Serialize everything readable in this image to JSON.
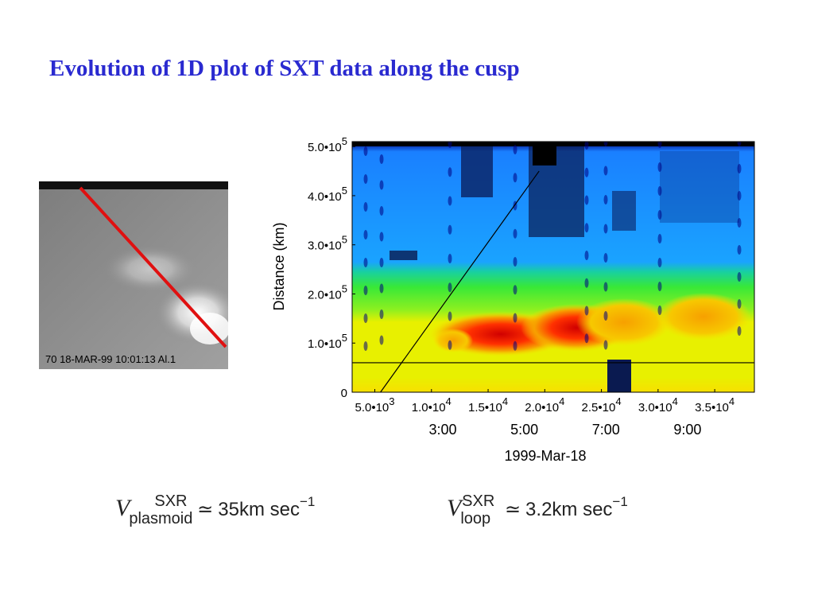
{
  "title": "Evolution of 1D plot of SXT data along the cusp",
  "thumbnail": {
    "caption": "70 18-MAR-99  10:01:13 Al.1",
    "line_color": "#e01010"
  },
  "chart_data": {
    "type": "heatmap",
    "ylabel": "Distance (km)",
    "xlabel": "1999-Mar-18",
    "x_ticks": [
      {
        "label": "5.0•10",
        "exp": "3",
        "value": 5000
      },
      {
        "label": "1.0•10",
        "exp": "4",
        "value": 10000
      },
      {
        "label": "1.5•10",
        "exp": "4",
        "value": 15000
      },
      {
        "label": "2.0•10",
        "exp": "4",
        "value": 20000
      },
      {
        "label": "2.5•10",
        "exp": "4",
        "value": 25000
      },
      {
        "label": "3.0•10",
        "exp": "4",
        "value": 30000
      },
      {
        "label": "3.5•10",
        "exp": "4",
        "value": 35000
      }
    ],
    "x_time_ticks": [
      {
        "label": "3:00",
        "value": 11000
      },
      {
        "label": "5:00",
        "value": 18200
      },
      {
        "label": "7:00",
        "value": 25400
      },
      {
        "label": "9:00",
        "value": 32600
      }
    ],
    "y_ticks": [
      {
        "label": "0",
        "exp": "",
        "value": 0
      },
      {
        "label": "1.0•10",
        "exp": "5",
        "value": 100000
      },
      {
        "label": "2.0•10",
        "exp": "5",
        "value": 200000
      },
      {
        "label": "3.0•10",
        "exp": "5",
        "value": 300000
      },
      {
        "label": "4.0•10",
        "exp": "5",
        "value": 400000
      },
      {
        "label": "5.0•10",
        "exp": "5",
        "value": 500000
      }
    ],
    "xlim": [
      3000,
      38500
    ],
    "ylim": [
      0,
      510000
    ],
    "overlay_lines": [
      {
        "name": "plasmoid",
        "x": [
          5500,
          19500
        ],
        "y": [
          0,
          450000
        ],
        "color": "#000000"
      },
      {
        "name": "loop",
        "x": [
          3000,
          38500
        ],
        "y": [
          60000,
          60000
        ],
        "color": "#000000"
      }
    ],
    "colors": {
      "high": "#e01010",
      "mid_high": "#f7b000",
      "mid": "#e8f000",
      "mid_low": "#38e838",
      "low": "#1aa3ff",
      "none": "#000080"
    }
  },
  "formulas": [
    {
      "v": "V",
      "sub": "plasmoid",
      "sup": "SXR",
      "rel": "≃",
      "value": "35km  sec",
      "exp": "−1"
    },
    {
      "v": "V",
      "sub": "loop",
      "sup": "SXR",
      "rel": "≃",
      "value": "3.2km  sec",
      "exp": "−1"
    }
  ]
}
